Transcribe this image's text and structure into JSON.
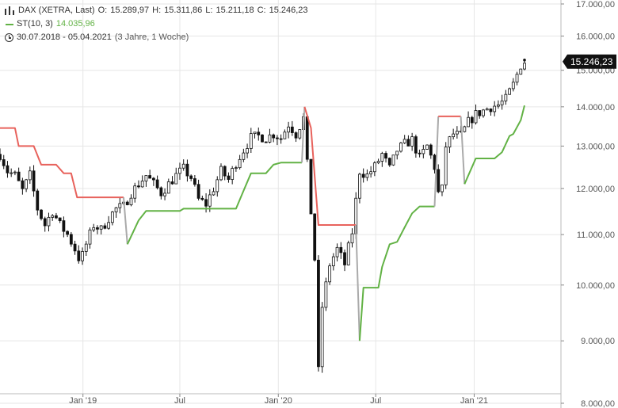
{
  "legend": {
    "instrument": {
      "name": "DAX (XETRA, Last)",
      "open_label": "O:",
      "open": "15.289,97",
      "high_label": "H:",
      "high": "15.311,86",
      "low_label": "L:",
      "low": "15.211,18",
      "close_label": "C:",
      "close": "15.246,23",
      "icon": "candlestick-icon"
    },
    "indicator": {
      "name": "ST(10, 3)",
      "value": "14.035,96",
      "icon": "line-icon",
      "color": "#62b245"
    },
    "period": {
      "range": "30.07.2018 - 05.04.2021",
      "duration": "(3 Jahre, 1 Woche)",
      "icon": "clock-icon"
    }
  },
  "current_price_label": "15.246,23",
  "chart_data": {
    "type": "candlestick",
    "scale": "log",
    "ylim": [
      8000,
      17000
    ],
    "y_ticks": [
      {
        "value": 17000,
        "label": "17.000,00"
      },
      {
        "value": 16000,
        "label": "16.000,00"
      },
      {
        "value": 15000,
        "label": "15.000,00"
      },
      {
        "value": 14000,
        "label": "14.000,00"
      },
      {
        "value": 13000,
        "label": "13.000,00"
      },
      {
        "value": 12000,
        "label": "12.000,00"
      },
      {
        "value": 11000,
        "label": "11.000,00"
      },
      {
        "value": 10000,
        "label": "10.000,00"
      },
      {
        "value": 9000,
        "label": "9.000,00"
      },
      {
        "value": 8000,
        "label": "8.000,00"
      }
    ],
    "x_range": [
      "2018-07-30",
      "2021-04-05"
    ],
    "x_ticks": [
      {
        "date": "2019-01-01",
        "label": "Jan '19"
      },
      {
        "date": "2019-07-01",
        "label": "Jul"
      },
      {
        "date": "2020-01-01",
        "label": "Jan '20"
      },
      {
        "date": "2020-07-01",
        "label": "Jul"
      },
      {
        "date": "2021-01-01",
        "label": "Jan '21"
      }
    ],
    "grid": true,
    "colors": {
      "candle": "#111111",
      "supertrend_down": "#e8625c",
      "supertrend_up": "#62b245",
      "supertrend_flip": "#aaaaaa",
      "badge": "#111111",
      "grid": "#e6e6e6"
    },
    "price_path": [
      [
        "2018-07-30",
        12800
      ],
      [
        "2018-08-13",
        12400
      ],
      [
        "2018-08-27",
        12300
      ],
      [
        "2018-09-10",
        11950
      ],
      [
        "2018-09-24",
        12300
      ],
      [
        "2018-10-08",
        11550
      ],
      [
        "2018-10-22",
        11200
      ],
      [
        "2018-11-05",
        11500
      ],
      [
        "2018-11-19",
        11200
      ],
      [
        "2018-12-03",
        11000
      ],
      [
        "2018-12-17",
        10700
      ],
      [
        "2018-12-27",
        10450
      ],
      [
        "2019-01-07",
        10800
      ],
      [
        "2019-01-21",
        11200
      ],
      [
        "2019-02-04",
        11100
      ],
      [
        "2019-02-18",
        11350
      ],
      [
        "2019-03-04",
        11550
      ],
      [
        "2019-03-18",
        11600
      ],
      [
        "2019-04-01",
        11900
      ],
      [
        "2019-04-15",
        12100
      ],
      [
        "2019-04-29",
        12300
      ],
      [
        "2019-05-13",
        12100
      ],
      [
        "2019-05-27",
        11900
      ],
      [
        "2019-06-10",
        12100
      ],
      [
        "2019-06-24",
        12300
      ],
      [
        "2019-07-08",
        12450
      ],
      [
        "2019-07-22",
        12250
      ],
      [
        "2019-08-05",
        11750
      ],
      [
        "2019-08-19",
        11650
      ],
      [
        "2019-09-02",
        12000
      ],
      [
        "2019-09-16",
        12400
      ],
      [
        "2019-09-30",
        12200
      ],
      [
        "2019-10-14",
        12600
      ],
      [
        "2019-10-28",
        12900
      ],
      [
        "2019-11-11",
        13200
      ],
      [
        "2019-11-25",
        13250
      ],
      [
        "2019-12-09",
        13200
      ],
      [
        "2019-12-23",
        13300
      ],
      [
        "2020-01-06",
        13200
      ],
      [
        "2020-01-20",
        13550
      ],
      [
        "2020-02-03",
        13300
      ],
      [
        "2020-02-17",
        13700
      ],
      [
        "2020-02-28",
        11900
      ],
      [
        "2020-03-09",
        10500
      ],
      [
        "2020-03-16",
        8500
      ],
      [
        "2020-03-23",
        9600
      ],
      [
        "2020-04-06",
        10400
      ],
      [
        "2020-04-20",
        10700
      ],
      [
        "2020-05-04",
        10400
      ],
      [
        "2020-05-18",
        11050
      ],
      [
        "2020-06-01",
        12400
      ],
      [
        "2020-06-15",
        12300
      ],
      [
        "2020-06-29",
        12500
      ],
      [
        "2020-07-13",
        12800
      ],
      [
        "2020-07-27",
        12450
      ],
      [
        "2020-08-10",
        12900
      ],
      [
        "2020-08-24",
        13050
      ],
      [
        "2020-09-07",
        13150
      ],
      [
        "2020-09-21",
        12700
      ],
      [
        "2020-10-05",
        13000
      ],
      [
        "2020-10-19",
        12500
      ],
      [
        "2020-10-30",
        11550
      ],
      [
        "2020-11-09",
        13000
      ],
      [
        "2020-11-23",
        13300
      ],
      [
        "2020-12-07",
        13250
      ],
      [
        "2020-12-21",
        13600
      ],
      [
        "2021-01-04",
        13800
      ],
      [
        "2021-01-18",
        13900
      ],
      [
        "2021-02-01",
        14000
      ],
      [
        "2021-02-15",
        14050
      ],
      [
        "2021-03-01",
        14200
      ],
      [
        "2021-03-15",
        14600
      ],
      [
        "2021-03-29",
        15150
      ],
      [
        "2021-04-05",
        15246
      ]
    ],
    "supertrend": [
      {
        "direction": "down",
        "points": [
          [
            "2018-07-30",
            13450
          ],
          [
            "2018-08-27",
            13450
          ],
          [
            "2018-09-03",
            13000
          ],
          [
            "2018-10-01",
            13000
          ],
          [
            "2018-10-15",
            12550
          ],
          [
            "2018-11-12",
            12550
          ],
          [
            "2018-11-26",
            12350
          ],
          [
            "2018-12-10",
            12350
          ],
          [
            "2018-12-21",
            11800
          ],
          [
            "2019-03-18",
            11800
          ]
        ]
      },
      {
        "direction": "flip",
        "points": [
          [
            "2019-03-18",
            11800
          ],
          [
            "2019-03-25",
            10800
          ]
        ]
      },
      {
        "direction": "up",
        "points": [
          [
            "2019-03-25",
            10800
          ],
          [
            "2019-04-15",
            11300
          ],
          [
            "2019-04-29",
            11500
          ],
          [
            "2019-07-01",
            11500
          ],
          [
            "2019-07-08",
            11550
          ],
          [
            "2019-10-14",
            11550
          ],
          [
            "2019-10-28",
            11950
          ],
          [
            "2019-11-11",
            12350
          ],
          [
            "2019-12-09",
            12350
          ],
          [
            "2019-12-23",
            12550
          ],
          [
            "2020-01-06",
            12600
          ],
          [
            "2020-02-14",
            12600
          ]
        ]
      },
      {
        "direction": "flip",
        "points": [
          [
            "2020-02-14",
            12600
          ],
          [
            "2020-02-19",
            14000
          ]
        ]
      },
      {
        "direction": "down",
        "points": [
          [
            "2020-02-19",
            14000
          ],
          [
            "2020-03-02",
            13450
          ],
          [
            "2020-03-16",
            11200
          ],
          [
            "2020-05-25",
            11200
          ]
        ]
      },
      {
        "direction": "flip",
        "points": [
          [
            "2020-05-25",
            11200
          ],
          [
            "2020-06-01",
            9000
          ]
        ]
      },
      {
        "direction": "up",
        "points": [
          [
            "2020-06-01",
            9000
          ],
          [
            "2020-06-08",
            9950
          ],
          [
            "2020-07-06",
            9950
          ],
          [
            "2020-07-13",
            10350
          ],
          [
            "2020-07-27",
            10800
          ],
          [
            "2020-08-10",
            10850
          ],
          [
            "2020-08-24",
            11150
          ],
          [
            "2020-09-07",
            11450
          ],
          [
            "2020-09-21",
            11600
          ],
          [
            "2020-10-19",
            11600
          ]
        ]
      },
      {
        "direction": "flip",
        "points": [
          [
            "2020-10-19",
            11600
          ],
          [
            "2020-10-26",
            13750
          ]
        ]
      },
      {
        "direction": "down",
        "points": [
          [
            "2020-10-26",
            13750
          ],
          [
            "2020-12-07",
            13750
          ]
        ]
      },
      {
        "direction": "flip",
        "points": [
          [
            "2020-12-07",
            13750
          ],
          [
            "2020-12-14",
            12100
          ]
        ]
      },
      {
        "direction": "up",
        "points": [
          [
            "2020-12-14",
            12100
          ],
          [
            "2021-01-04",
            12700
          ],
          [
            "2021-02-08",
            12700
          ],
          [
            "2021-02-22",
            12850
          ],
          [
            "2021-03-08",
            13250
          ],
          [
            "2021-03-15",
            13300
          ],
          [
            "2021-03-29",
            13650
          ],
          [
            "2021-04-05",
            14036
          ]
        ]
      }
    ]
  }
}
